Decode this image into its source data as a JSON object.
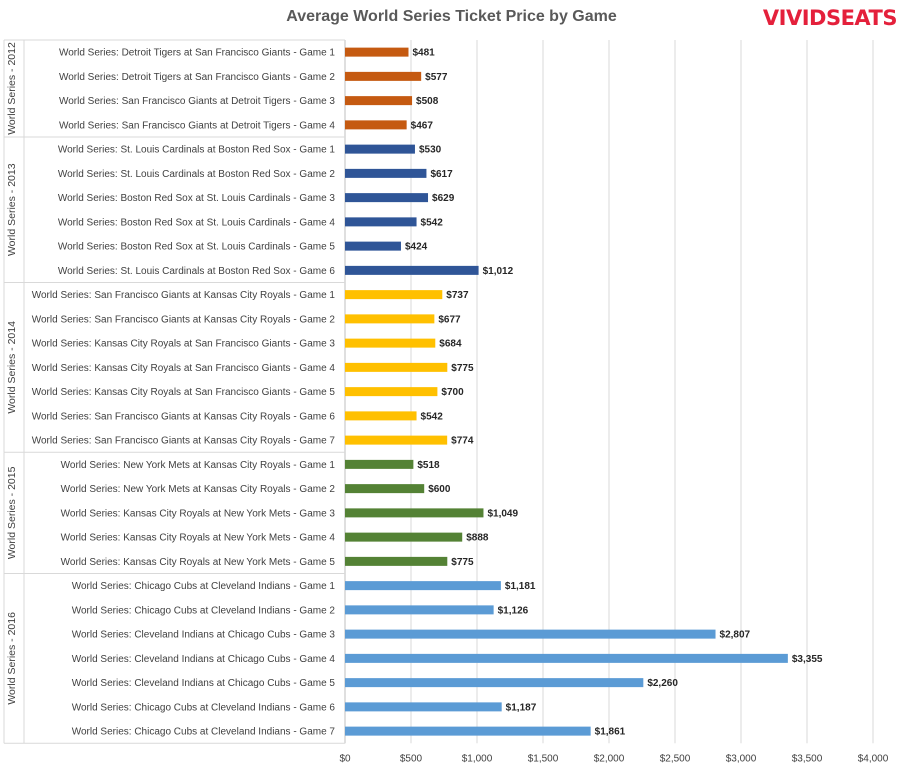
{
  "header": {
    "title": "Average World Series Ticket Price by Game",
    "logo": "VIVIDSEATS"
  },
  "colors": {
    "2012": "#c55a11",
    "2013": "#2f5597",
    "2014": "#ffc000",
    "2015": "#548235",
    "2016": "#5b9bd5"
  },
  "chart_data": {
    "type": "bar",
    "orientation": "horizontal",
    "title": "Average World Series Ticket Price by Game",
    "xlim": [
      0,
      4000
    ],
    "x_ticks": [
      0,
      500,
      1000,
      1500,
      2000,
      2500,
      3000,
      3500,
      4000
    ],
    "x_tick_labels": [
      "$0",
      "$500",
      "$1,000",
      "$1,500",
      "$2,000",
      "$2,500",
      "$3,000",
      "$3,500",
      "$4,000"
    ],
    "grid": "vertical",
    "groups": [
      {
        "name": "World Series - 2012",
        "color_key": "2012",
        "items": [
          {
            "label": "World Series: Detroit Tigers at San Francisco Giants - Game 1",
            "value": 481,
            "value_label": "$481"
          },
          {
            "label": "World Series: Detroit Tigers at San Francisco Giants - Game 2",
            "value": 577,
            "value_label": "$577"
          },
          {
            "label": "World Series: San Francisco Giants at Detroit Tigers - Game 3",
            "value": 508,
            "value_label": "$508"
          },
          {
            "label": "World Series: San Francisco Giants at Detroit Tigers - Game 4",
            "value": 467,
            "value_label": "$467"
          }
        ]
      },
      {
        "name": "World Series - 2013",
        "color_key": "2013",
        "items": [
          {
            "label": "World Series: St. Louis Cardinals at Boston Red Sox - Game 1",
            "value": 530,
            "value_label": "$530"
          },
          {
            "label": "World Series: St. Louis Cardinals at Boston Red Sox - Game 2",
            "value": 617,
            "value_label": "$617"
          },
          {
            "label": "World Series: Boston Red Sox at St. Louis Cardinals - Game 3",
            "value": 629,
            "value_label": "$629"
          },
          {
            "label": "World Series: Boston Red Sox at St. Louis Cardinals - Game 4",
            "value": 542,
            "value_label": "$542"
          },
          {
            "label": "World Series: Boston Red Sox at St. Louis Cardinals - Game 5",
            "value": 424,
            "value_label": "$424"
          },
          {
            "label": "World Series: St. Louis Cardinals at Boston Red Sox - Game 6",
            "value": 1012,
            "value_label": "$1,012"
          }
        ]
      },
      {
        "name": "World Series - 2014",
        "color_key": "2014",
        "items": [
          {
            "label": "World Series: San Francisco Giants at Kansas City Royals - Game 1",
            "value": 737,
            "value_label": "$737"
          },
          {
            "label": "World Series: San Francisco Giants at Kansas City Royals - Game 2",
            "value": 677,
            "value_label": "$677"
          },
          {
            "label": "World Series: Kansas City Royals at San Francisco Giants - Game 3",
            "value": 684,
            "value_label": "$684"
          },
          {
            "label": "World Series: Kansas City Royals at San Francisco Giants - Game 4",
            "value": 775,
            "value_label": "$775"
          },
          {
            "label": "World Series: Kansas City Royals at San Francisco Giants - Game 5",
            "value": 700,
            "value_label": "$700"
          },
          {
            "label": "World Series: San Francisco Giants at Kansas City Royals - Game 6",
            "value": 542,
            "value_label": "$542"
          },
          {
            "label": "World Series: San Francisco Giants at Kansas City Royals - Game 7",
            "value": 774,
            "value_label": "$774"
          }
        ]
      },
      {
        "name": "World Series - 2015",
        "color_key": "2015",
        "items": [
          {
            "label": "World Series: New York Mets at Kansas City Royals - Game 1",
            "value": 518,
            "value_label": "$518"
          },
          {
            "label": "World Series: New York Mets at Kansas City Royals - Game 2",
            "value": 600,
            "value_label": "$600"
          },
          {
            "label": "World Series: Kansas City Royals at New York Mets - Game 3",
            "value": 1049,
            "value_label": "$1,049"
          },
          {
            "label": "World Series: Kansas City Royals at New York Mets - Game 4",
            "value": 888,
            "value_label": "$888"
          },
          {
            "label": "World Series: Kansas City Royals at New York Mets - Game 5",
            "value": 775,
            "value_label": "$775"
          }
        ]
      },
      {
        "name": "World Series - 2016",
        "color_key": "2016",
        "items": [
          {
            "label": "World Series: Chicago Cubs at Cleveland Indians - Game 1",
            "value": 1181,
            "value_label": "$1,181"
          },
          {
            "label": "World Series: Chicago Cubs at Cleveland Indians - Game 2",
            "value": 1126,
            "value_label": "$1,126"
          },
          {
            "label": "World Series: Cleveland Indians at Chicago Cubs - Game 3",
            "value": 2807,
            "value_label": "$2,807"
          },
          {
            "label": "World Series: Cleveland Indians at Chicago Cubs - Game 4",
            "value": 3355,
            "value_label": "$3,355"
          },
          {
            "label": "World Series: Cleveland Indians at Chicago Cubs - Game 5",
            "value": 2260,
            "value_label": "$2,260"
          },
          {
            "label": "World Series: Chicago Cubs at Cleveland Indians - Game 6",
            "value": 1187,
            "value_label": "$1,187"
          },
          {
            "label": "World Series: Chicago Cubs at Cleveland Indians - Game 7",
            "value": 1861,
            "value_label": "$1,861"
          }
        ]
      }
    ]
  }
}
